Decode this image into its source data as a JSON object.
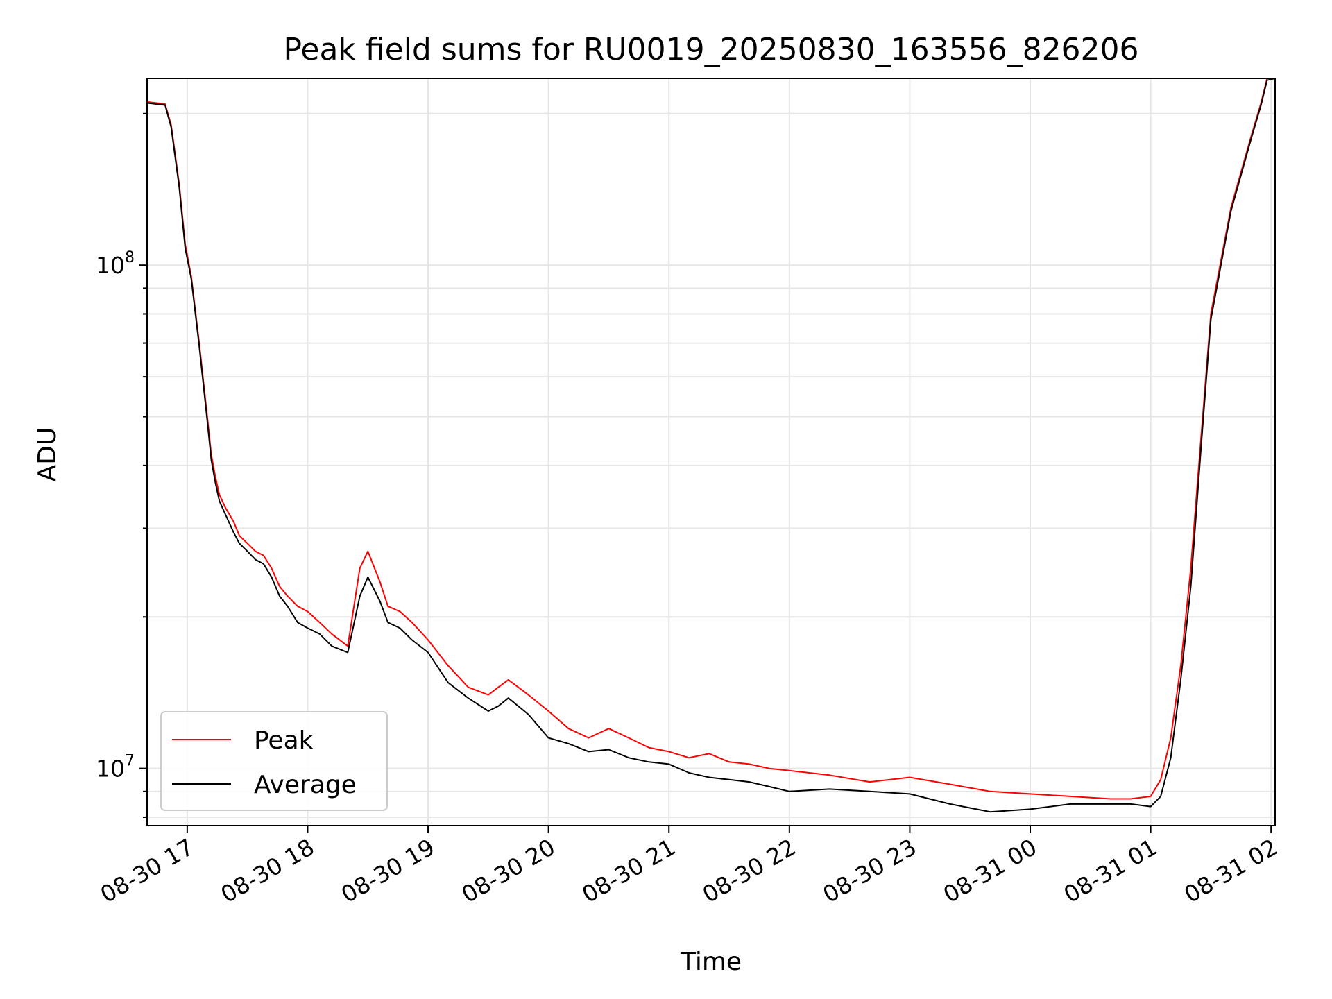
{
  "chart_data": {
    "type": "line",
    "title": "Peak field sums for RU0019_20250830_163556_826206",
    "xlabel": "Time",
    "ylabel": "ADU",
    "yscale": "log",
    "grid": true,
    "legend": {
      "placement": "lower-left",
      "entries": [
        "Peak",
        "Average"
      ]
    },
    "colors": {
      "Peak": "#ff0000",
      "Average": "#000000"
    },
    "xlim": [
      "2025-08-30 16:40",
      "2025-08-31 02:02"
    ],
    "ylim": [
      7700000,
      235000000
    ],
    "x_ticks": [
      {
        "time": "2025-08-30 17:00",
        "label": "08-30 17"
      },
      {
        "time": "2025-08-30 18:00",
        "label": "08-30 18"
      },
      {
        "time": "2025-08-30 19:00",
        "label": "08-30 19"
      },
      {
        "time": "2025-08-30 20:00",
        "label": "08-30 20"
      },
      {
        "time": "2025-08-30 21:00",
        "label": "08-30 21"
      },
      {
        "time": "2025-08-30 22:00",
        "label": "08-30 22"
      },
      {
        "time": "2025-08-30 23:00",
        "label": "08-30 23"
      },
      {
        "time": "2025-08-31 00:00",
        "label": "08-31 00"
      },
      {
        "time": "2025-08-31 01:00",
        "label": "08-31 01"
      },
      {
        "time": "2025-08-31 02:00",
        "label": "08-31 02"
      }
    ],
    "y_ticks": [
      {
        "value": 10000000,
        "base": "10",
        "exponent": "7"
      },
      {
        "value": 100000000,
        "base": "10",
        "exponent": "8"
      }
    ],
    "series": [
      {
        "name": "Peak",
        "x": [
          "2025-08-30 16:40",
          "2025-08-30 16:49",
          "2025-08-30 16:52",
          "2025-08-30 16:56",
          "2025-08-30 16:59",
          "2025-08-30 17:02",
          "2025-08-30 17:06",
          "2025-08-30 17:10",
          "2025-08-30 17:12",
          "2025-08-30 17:14",
          "2025-08-30 17:16",
          "2025-08-30 17:19",
          "2025-08-30 17:23",
          "2025-08-30 17:26",
          "2025-08-30 17:30",
          "2025-08-30 17:34",
          "2025-08-30 17:38",
          "2025-08-30 17:42",
          "2025-08-30 17:46",
          "2025-08-30 17:50",
          "2025-08-30 17:55",
          "2025-08-30 18:00",
          "2025-08-30 18:06",
          "2025-08-30 18:12",
          "2025-08-30 18:20",
          "2025-08-30 18:26",
          "2025-08-30 18:30",
          "2025-08-30 18:36",
          "2025-08-30 18:40",
          "2025-08-30 18:46",
          "2025-08-30 18:52",
          "2025-08-30 19:00",
          "2025-08-30 19:10",
          "2025-08-30 19:20",
          "2025-08-30 19:30",
          "2025-08-30 19:35",
          "2025-08-30 19:40",
          "2025-08-30 19:50",
          "2025-08-30 20:00",
          "2025-08-30 20:10",
          "2025-08-30 20:20",
          "2025-08-30 20:30",
          "2025-08-30 20:40",
          "2025-08-30 20:50",
          "2025-08-30 21:00",
          "2025-08-30 21:10",
          "2025-08-30 21:20",
          "2025-08-30 21:30",
          "2025-08-30 21:40",
          "2025-08-30 21:50",
          "2025-08-30 22:00",
          "2025-08-30 22:20",
          "2025-08-30 22:40",
          "2025-08-30 23:00",
          "2025-08-30 23:20",
          "2025-08-30 23:40",
          "2025-08-31 00:00",
          "2025-08-31 00:20",
          "2025-08-31 00:40",
          "2025-08-31 00:50",
          "2025-08-31 01:00",
          "2025-08-31 01:05",
          "2025-08-31 01:10",
          "2025-08-31 01:15",
          "2025-08-31 01:20",
          "2025-08-31 01:25",
          "2025-08-31 01:30",
          "2025-08-31 01:40",
          "2025-08-31 01:50",
          "2025-08-31 01:55",
          "2025-08-31 01:58",
          "2025-08-31 02:02"
        ],
        "values": [
          211000000,
          209000000,
          190000000,
          145000000,
          110000000,
          95000000,
          70000000,
          50000000,
          42000000,
          38000000,
          35000000,
          33000000,
          31000000,
          29000000,
          28000000,
          27000000,
          26500000,
          25000000,
          23000000,
          22000000,
          21000000,
          20500000,
          19500000,
          18500000,
          17500000,
          25000000,
          27000000,
          23500000,
          21000000,
          20500000,
          19500000,
          18000000,
          16000000,
          14500000,
          14000000,
          14500000,
          15000000,
          14000000,
          13000000,
          12000000,
          11500000,
          12000000,
          11500000,
          11000000,
          10800000,
          10500000,
          10700000,
          10300000,
          10200000,
          10000000,
          9900000,
          9700000,
          9400000,
          9600000,
          9300000,
          9000000,
          8900000,
          8800000,
          8700000,
          8700000,
          8800000,
          9500000,
          11500000,
          16000000,
          25000000,
          45000000,
          80000000,
          130000000,
          180000000,
          210000000,
          235000000,
          235000000
        ]
      },
      {
        "name": "Average",
        "x": [
          "2025-08-30 16:40",
          "2025-08-30 16:49",
          "2025-08-30 16:52",
          "2025-08-30 16:56",
          "2025-08-30 16:59",
          "2025-08-30 17:02",
          "2025-08-30 17:06",
          "2025-08-30 17:10",
          "2025-08-30 17:12",
          "2025-08-30 17:14",
          "2025-08-30 17:16",
          "2025-08-30 17:19",
          "2025-08-30 17:23",
          "2025-08-30 17:26",
          "2025-08-30 17:30",
          "2025-08-30 17:34",
          "2025-08-30 17:38",
          "2025-08-30 17:42",
          "2025-08-30 17:46",
          "2025-08-30 17:50",
          "2025-08-30 17:55",
          "2025-08-30 18:00",
          "2025-08-30 18:06",
          "2025-08-30 18:12",
          "2025-08-30 18:20",
          "2025-08-30 18:26",
          "2025-08-30 18:30",
          "2025-08-30 18:36",
          "2025-08-30 18:40",
          "2025-08-30 18:46",
          "2025-08-30 18:52",
          "2025-08-30 19:00",
          "2025-08-30 19:10",
          "2025-08-30 19:20",
          "2025-08-30 19:30",
          "2025-08-30 19:35",
          "2025-08-30 19:40",
          "2025-08-30 19:50",
          "2025-08-30 20:00",
          "2025-08-30 20:10",
          "2025-08-30 20:20",
          "2025-08-30 20:30",
          "2025-08-30 20:40",
          "2025-08-30 20:50",
          "2025-08-30 21:00",
          "2025-08-30 21:10",
          "2025-08-30 21:20",
          "2025-08-30 21:30",
          "2025-08-30 21:40",
          "2025-08-30 21:50",
          "2025-08-30 22:00",
          "2025-08-30 22:20",
          "2025-08-30 22:40",
          "2025-08-30 23:00",
          "2025-08-30 23:20",
          "2025-08-30 23:40",
          "2025-08-31 00:00",
          "2025-08-31 00:20",
          "2025-08-31 00:40",
          "2025-08-31 00:50",
          "2025-08-31 01:00",
          "2025-08-31 01:05",
          "2025-08-31 01:10",
          "2025-08-31 01:15",
          "2025-08-31 01:20",
          "2025-08-31 01:25",
          "2025-08-31 01:30",
          "2025-08-31 01:40",
          "2025-08-31 01:50",
          "2025-08-31 01:55",
          "2025-08-31 01:58",
          "2025-08-31 02:02"
        ],
        "values": [
          210000000,
          208000000,
          188000000,
          143000000,
          108000000,
          94000000,
          69000000,
          49000000,
          41000000,
          37000000,
          34000000,
          32000000,
          29500000,
          28000000,
          27000000,
          26000000,
          25500000,
          24000000,
          22000000,
          21000000,
          19500000,
          19000000,
          18500000,
          17500000,
          17000000,
          22000000,
          24000000,
          21500000,
          19500000,
          19000000,
          18000000,
          17000000,
          14800000,
          13800000,
          13000000,
          13300000,
          13800000,
          12800000,
          11500000,
          11200000,
          10800000,
          10900000,
          10500000,
          10300000,
          10200000,
          9800000,
          9600000,
          9500000,
          9400000,
          9200000,
          9000000,
          9100000,
          9000000,
          8900000,
          8500000,
          8200000,
          8300000,
          8500000,
          8500000,
          8500000,
          8400000,
          8800000,
          10500000,
          15000000,
          23000000,
          43000000,
          78000000,
          128000000,
          178000000,
          208000000,
          233000000,
          235000000
        ]
      }
    ]
  }
}
